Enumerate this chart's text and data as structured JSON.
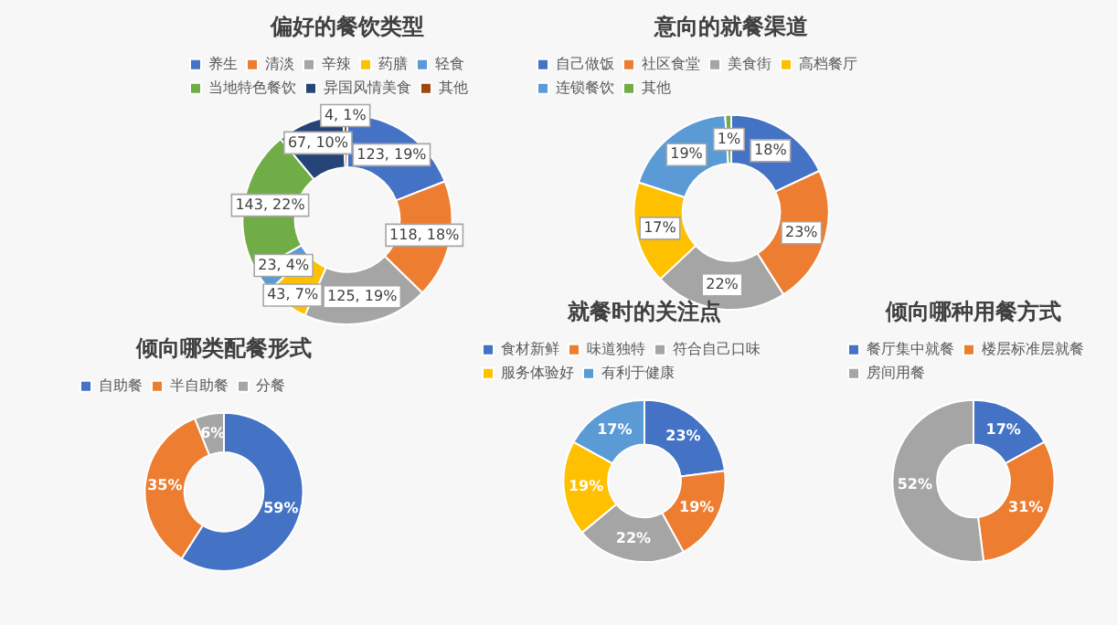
{
  "chart_data": [
    {
      "type": "donut",
      "title": "偏好的餐饮类型",
      "categories": [
        "养生",
        "清淡",
        "辛辣",
        "药膳",
        "轻食",
        "当地特色餐饮",
        "异国风情美食",
        "其他"
      ],
      "values": [
        123,
        118,
        125,
        43,
        23,
        143,
        67,
        4
      ],
      "colors": [
        "#4472c4",
        "#ed7d31",
        "#a5a5a5",
        "#ffc000",
        "#5b9bd5",
        "#70ad47",
        "#264478",
        "#9e480e"
      ],
      "value_labels": [
        "123, 19%",
        "118, 18%",
        "125, 19%",
        "43, 7%",
        "23, 4%",
        "143, 22%",
        "67, 10%",
        "4, 1%"
      ],
      "legend": "top"
    },
    {
      "type": "donut",
      "title": "意向的就餐渠道",
      "categories": [
        "自己做饭",
        "社区食堂",
        "美食街",
        "高档餐厅",
        "连锁餐饮",
        "其他"
      ],
      "values": [
        18,
        23,
        22,
        17,
        19,
        1
      ],
      "colors": [
        "#4472c4",
        "#ed7d31",
        "#a5a5a5",
        "#ffc000",
        "#5b9bd5",
        "#70ad47"
      ],
      "value_labels": [
        "18%",
        "23%",
        "22%",
        "17%",
        "19%",
        "1%"
      ],
      "legend": "top"
    },
    {
      "type": "donut",
      "title": "倾向哪类配餐形式",
      "categories": [
        "自助餐",
        "半自助餐",
        "分餐"
      ],
      "values": [
        59,
        35,
        6
      ],
      "colors": [
        "#4472c4",
        "#ed7d31",
        "#a5a5a5"
      ],
      "value_labels": [
        "59%",
        "35%",
        "6%"
      ],
      "legend": "top"
    },
    {
      "type": "donut",
      "title": "就餐时的关注点",
      "categories": [
        "食材新鲜",
        "味道独特",
        "符合自己口味",
        "服务体验好",
        "有利于健康"
      ],
      "values": [
        23,
        19,
        22,
        19,
        17
      ],
      "colors": [
        "#4472c4",
        "#ed7d31",
        "#a5a5a5",
        "#ffc000",
        "#5b9bd5"
      ],
      "value_labels": [
        "23%",
        "19%",
        "22%",
        "19%",
        "17%"
      ],
      "legend": "top"
    },
    {
      "type": "donut",
      "title": "倾向哪种用餐方式",
      "categories": [
        "餐厅集中就餐",
        "楼层标准层就餐",
        "房间用餐"
      ],
      "values": [
        17,
        31,
        52
      ],
      "colors": [
        "#4472c4",
        "#ed7d31",
        "#a5a5a5"
      ],
      "value_labels": [
        "17%",
        "31%",
        "52%"
      ],
      "legend": "top"
    }
  ]
}
